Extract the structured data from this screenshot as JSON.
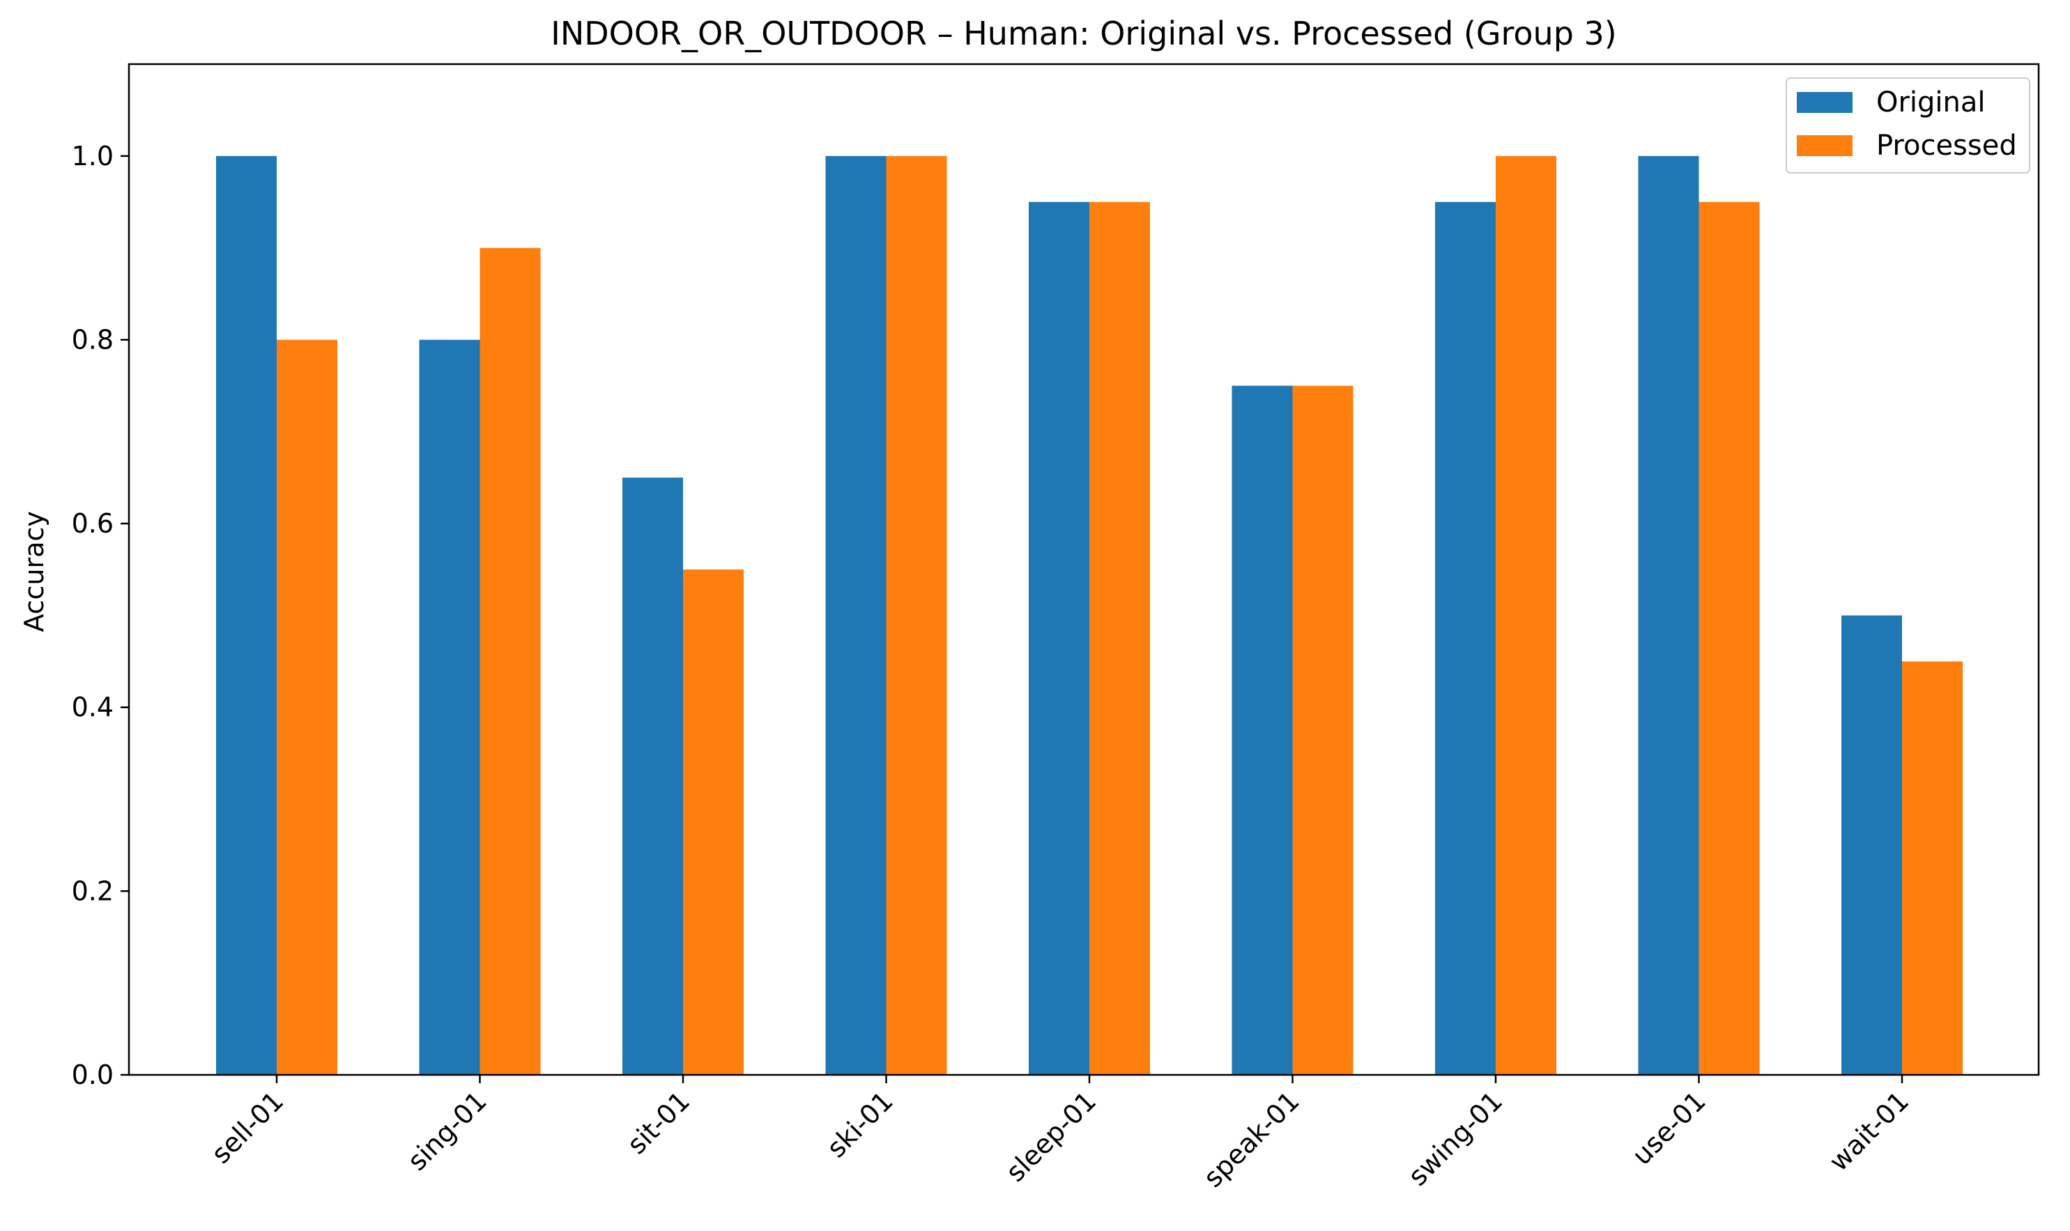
{
  "chart_data": {
    "type": "bar",
    "title": "INDOOR_OR_OUTDOOR – Human: Original vs. Processed (Group 3)",
    "xlabel": "",
    "ylabel": "Accuracy",
    "ylim": [
      0,
      1.1
    ],
    "yticks": [
      "0.0",
      "0.2",
      "0.4",
      "0.6",
      "0.8",
      "1.0"
    ],
    "categories": [
      "sell-01",
      "sing-01",
      "sit-01",
      "ski-01",
      "sleep-01",
      "speak-01",
      "swing-01",
      "use-01",
      "wait-01"
    ],
    "series": [
      {
        "name": "Original",
        "color": "#1f77b4",
        "values": [
          1.0,
          0.8,
          0.65,
          1.0,
          0.95,
          0.75,
          0.95,
          1.0,
          0.5
        ]
      },
      {
        "name": "Processed",
        "color": "#ff7f0e",
        "values": [
          0.8,
          0.9,
          0.55,
          1.0,
          0.95,
          0.75,
          1.0,
          0.95,
          0.45
        ]
      }
    ],
    "grid": false,
    "legend": "top-right"
  }
}
